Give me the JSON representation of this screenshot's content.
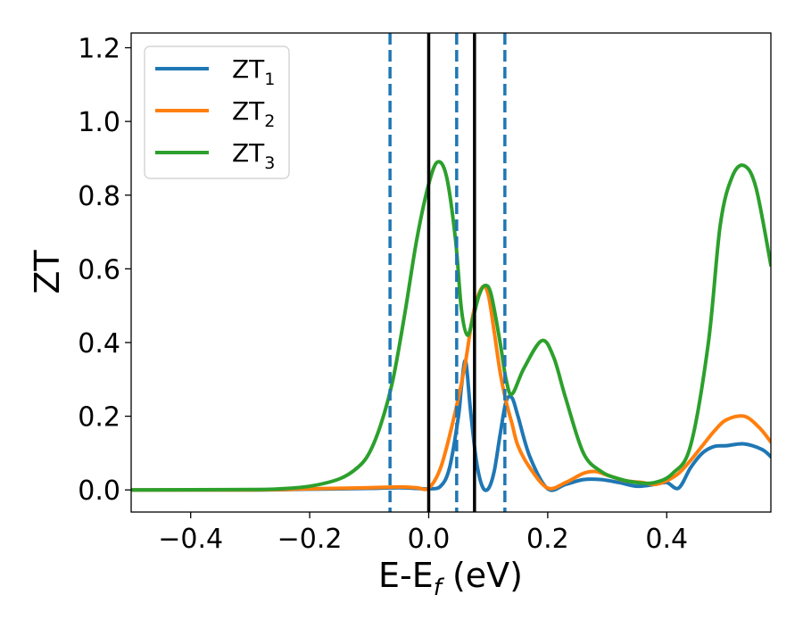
{
  "chart_data": {
    "type": "line",
    "title": "",
    "xlabel": "E-E",
    "xlabel_subscript": "f",
    "xlabel_suffix": " (eV)",
    "ylabel": "ZT",
    "xlim": [
      -0.5,
      0.575
    ],
    "ylim": [
      -0.06,
      1.24
    ],
    "x_ticks": [
      -0.4,
      -0.2,
      0.0,
      0.2,
      0.4
    ],
    "x_tick_labels": [
      "−0.4",
      "−0.2",
      "0.0",
      "0.2",
      "0.4"
    ],
    "y_ticks": [
      0.0,
      0.2,
      0.4,
      0.6,
      0.8,
      1.0,
      1.2
    ],
    "y_tick_labels": [
      "0.0",
      "0.2",
      "0.4",
      "0.6",
      "0.8",
      "1.0",
      "1.2"
    ],
    "grid": false,
    "legend_position": "top-left",
    "series": [
      {
        "name": "ZT",
        "subscript": "1",
        "color": "#1f77b4",
        "x": [
          -0.5,
          -0.3,
          -0.2,
          -0.1,
          -0.05,
          -0.02,
          0.0,
          0.02,
          0.035,
          0.05,
          0.055,
          0.062,
          0.07,
          0.08,
          0.09,
          0.1,
          0.11,
          0.12,
          0.13,
          0.14,
          0.15,
          0.17,
          0.2,
          0.23,
          0.26,
          0.29,
          0.32,
          0.35,
          0.38,
          0.4,
          0.42,
          0.44,
          0.46,
          0.48,
          0.5,
          0.53,
          0.56,
          0.575
        ],
        "y": [
          0.0,
          0.0,
          0.002,
          0.004,
          0.006,
          0.004,
          0.003,
          0.01,
          0.06,
          0.2,
          0.28,
          0.35,
          0.22,
          0.08,
          0.01,
          0.003,
          0.05,
          0.15,
          0.24,
          0.25,
          0.2,
          0.09,
          0.003,
          0.015,
          0.028,
          0.028,
          0.02,
          0.01,
          0.015,
          0.02,
          0.005,
          0.06,
          0.1,
          0.118,
          0.12,
          0.125,
          0.11,
          0.09
        ]
      },
      {
        "name": "ZT",
        "subscript": "2",
        "color": "#ff7f0e",
        "x": [
          -0.5,
          -0.3,
          -0.2,
          -0.1,
          -0.05,
          -0.02,
          0.0,
          0.02,
          0.04,
          0.06,
          0.075,
          0.09,
          0.1,
          0.11,
          0.12,
          0.13,
          0.14,
          0.15,
          0.17,
          0.2,
          0.23,
          0.26,
          0.28,
          0.3,
          0.33,
          0.36,
          0.38,
          0.4,
          0.42,
          0.44,
          0.46,
          0.48,
          0.5,
          0.53,
          0.555,
          0.575
        ],
        "y": [
          0.0,
          0.0,
          0.003,
          0.006,
          0.008,
          0.006,
          0.005,
          0.06,
          0.18,
          0.33,
          0.48,
          0.55,
          0.53,
          0.43,
          0.32,
          0.24,
          0.18,
          0.12,
          0.06,
          0.005,
          0.02,
          0.045,
          0.05,
          0.04,
          0.025,
          0.02,
          0.015,
          0.025,
          0.045,
          0.08,
          0.12,
          0.16,
          0.19,
          0.2,
          0.17,
          0.13
        ]
      },
      {
        "name": "ZT",
        "subscript": "3",
        "color": "#2ca02c",
        "x": [
          -0.5,
          -0.3,
          -0.25,
          -0.2,
          -0.15,
          -0.12,
          -0.1,
          -0.08,
          -0.06,
          -0.04,
          -0.02,
          0.0,
          0.015,
          0.03,
          0.045,
          0.055,
          0.065,
          0.075,
          0.085,
          0.095,
          0.105,
          0.12,
          0.13,
          0.14,
          0.16,
          0.19,
          0.21,
          0.23,
          0.26,
          0.29,
          0.32,
          0.35,
          0.38,
          0.41,
          0.44,
          0.47,
          0.49,
          0.51,
          0.53,
          0.55,
          0.575
        ],
        "y": [
          0.0,
          0.001,
          0.003,
          0.01,
          0.03,
          0.06,
          0.1,
          0.18,
          0.3,
          0.48,
          0.68,
          0.83,
          0.89,
          0.85,
          0.68,
          0.49,
          0.42,
          0.47,
          0.53,
          0.555,
          0.53,
          0.4,
          0.3,
          0.26,
          0.33,
          0.405,
          0.36,
          0.25,
          0.1,
          0.05,
          0.03,
          0.02,
          0.02,
          0.045,
          0.12,
          0.4,
          0.72,
          0.85,
          0.88,
          0.82,
          0.61
        ]
      }
    ],
    "vertical_lines": [
      {
        "x": -0.065,
        "style": "dashed",
        "color": "#1f77b4"
      },
      {
        "x": 0.047,
        "style": "dashed",
        "color": "#1f77b4"
      },
      {
        "x": 0.128,
        "style": "dashed",
        "color": "#1f77b4"
      },
      {
        "x": 0.0,
        "style": "solid",
        "color": "#000000"
      },
      {
        "x": 0.077,
        "style": "solid",
        "color": "#000000"
      }
    ]
  }
}
